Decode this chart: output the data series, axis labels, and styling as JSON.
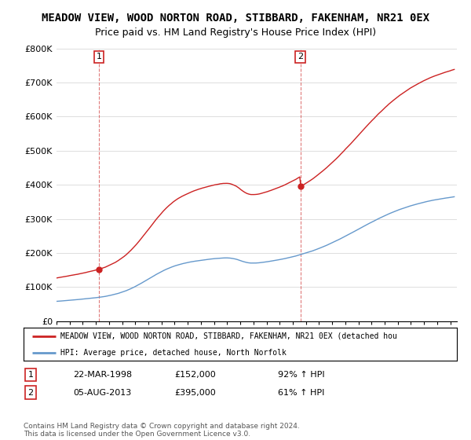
{
  "title1": "MEADOW VIEW, WOOD NORTON ROAD, STIBBARD, FAKENHAM, NR21 0EX",
  "title2": "Price paid vs. HM Land Registry's House Price Index (HPI)",
  "ylim": [
    0,
    800000
  ],
  "yticks": [
    0,
    100000,
    200000,
    300000,
    400000,
    500000,
    600000,
    700000,
    800000
  ],
  "ytick_labels": [
    "£0",
    "£100K",
    "£200K",
    "£300K",
    "£400K",
    "£500K",
    "£600K",
    "£700K",
    "£800K"
  ],
  "hpi_color": "#6699cc",
  "price_color": "#cc2222",
  "sale1_year": 1998.22,
  "sale1_price": 152000,
  "sale2_year": 2013.58,
  "sale2_price": 395000,
  "legend_line1": "MEADOW VIEW, WOOD NORTON ROAD, STIBBARD, FAKENHAM, NR21 0EX (detached hou",
  "legend_line2": "HPI: Average price, detached house, North Norfolk",
  "annotation1_label": "1",
  "annotation1_date": "22-MAR-1998",
  "annotation1_price": "£152,000",
  "annotation1_hpi": "92% ↑ HPI",
  "annotation2_label": "2",
  "annotation2_date": "05-AUG-2013",
  "annotation2_price": "£395,000",
  "annotation2_hpi": "61% ↑ HPI",
  "footer": "Contains HM Land Registry data © Crown copyright and database right 2024.\nThis data is licensed under the Open Government Licence v3.0.",
  "background_color": "#ffffff",
  "grid_color": "#dddddd",
  "title1_fontsize": 10,
  "title2_fontsize": 9
}
